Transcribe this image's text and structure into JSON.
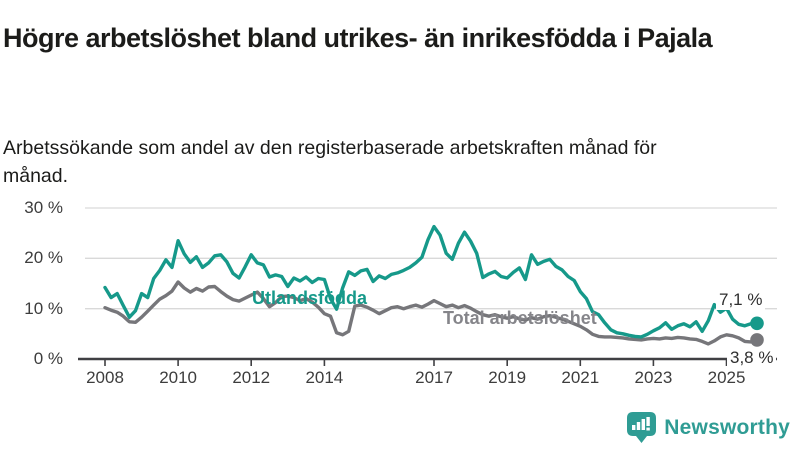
{
  "header": {
    "title": "Högre arbetslöshet bland utrikes- än inrikesfödda i Pajala",
    "subtitle": "Arbetssökande som andel av den registerbaserade arbetskraften månad för månad."
  },
  "chart_data": {
    "type": "line",
    "title": "Högre arbetslöshet bland utrikes- än inrikesfödda i Pajala",
    "subtitle": "Arbetssökande som andel av den registerbaserade arbetskraften månad för månad.",
    "unit": "%",
    "grid": true,
    "ylim": [
      0,
      30
    ],
    "y_tick_labels": [
      "0 %",
      "10 %",
      "20 %",
      "30 %"
    ],
    "y_tick_values": [
      0,
      10,
      20,
      30
    ],
    "x_tick_labels": [
      "2008",
      "2010",
      "2012",
      "2014",
      "2017",
      "2019",
      "2021",
      "2023",
      "2025"
    ],
    "x_start_year": 2008,
    "points_per_year": 6,
    "series": [
      {
        "name": "Utlandsfödda",
        "color": "#16998a",
        "end_label": "7,1 %",
        "end_value": 7.1,
        "values": [
          14.2,
          12.2,
          13.0,
          10.6,
          8.3,
          9.6,
          13.0,
          12.2,
          16.0,
          17.6,
          19.7,
          18.2,
          23.5,
          20.9,
          19.2,
          20.3,
          18.2,
          19.1,
          20.5,
          20.7,
          19.3,
          17.0,
          16.1,
          18.3,
          20.7,
          19.1,
          18.7,
          16.3,
          16.7,
          16.4,
          14.4,
          16.1,
          15.5,
          16.3,
          15.2,
          16.0,
          15.8,
          12.0,
          9.9,
          14.1,
          17.3,
          16.6,
          17.5,
          17.8,
          15.4,
          16.5,
          16.0,
          16.8,
          17.1,
          17.6,
          18.2,
          19.1,
          20.2,
          23.7,
          26.3,
          24.6,
          21.0,
          19.8,
          23.0,
          25.2,
          23.4,
          21.0,
          16.2,
          16.9,
          17.4,
          16.4,
          16.1,
          17.2,
          18.1,
          15.8,
          20.7,
          18.8,
          19.4,
          19.8,
          18.4,
          17.7,
          16.4,
          15.6,
          13.4,
          12.0,
          9.4,
          8.8,
          7.2,
          5.8,
          5.2,
          5.0,
          4.7,
          4.5,
          4.4,
          4.9,
          5.6,
          6.2,
          7.2,
          5.9,
          6.6,
          7.0,
          6.4,
          7.4,
          5.5,
          7.6,
          10.8,
          9.3,
          10.1,
          7.9,
          6.9,
          6.6,
          7.0,
          7.1
        ]
      },
      {
        "name": "Total arbetslöshet",
        "color": "#76767a",
        "end_label": "3,8 %",
        "end_value": 3.8,
        "values": [
          10.2,
          9.7,
          9.3,
          8.5,
          7.4,
          7.3,
          8.3,
          9.5,
          10.7,
          11.9,
          12.6,
          13.5,
          15.3,
          14.1,
          13.3,
          14.0,
          13.5,
          14.3,
          14.4,
          13.4,
          12.5,
          11.8,
          11.5,
          12.1,
          12.7,
          13.3,
          12.0,
          10.4,
          11.2,
          12.4,
          12.5,
          12.2,
          11.6,
          12.0,
          11.3,
          10.3,
          9.0,
          8.5,
          5.2,
          4.8,
          5.5,
          10.5,
          10.7,
          10.3,
          9.7,
          9.0,
          9.6,
          10.2,
          10.4,
          10.0,
          10.4,
          10.7,
          10.3,
          10.9,
          11.6,
          11.0,
          10.4,
          10.7,
          10.2,
          10.6,
          10.1,
          9.4,
          8.8,
          8.5,
          8.8,
          8.4,
          8.1,
          8.4,
          8.0,
          7.7,
          8.2,
          7.9,
          8.4,
          8.6,
          8.3,
          7.9,
          7.5,
          7.0,
          6.5,
          5.8,
          4.9,
          4.5,
          4.4,
          4.4,
          4.3,
          4.2,
          4.0,
          3.9,
          3.8,
          4.0,
          4.1,
          4.0,
          4.2,
          4.1,
          4.3,
          4.2,
          4.0,
          3.9,
          3.5,
          3.0,
          3.6,
          4.4,
          4.8,
          4.6,
          4.2,
          3.5,
          3.4,
          3.8
        ]
      }
    ],
    "legend_position": "inline-labels"
  },
  "colors": {
    "utlandsfodda": "#16998a",
    "total": "#76767a",
    "grid": "#d9d9d9",
    "axis": "#404043",
    "brand": "#2f9c94"
  },
  "footer": {
    "brand": "Newsworthy",
    "logo_icon": "bar-chart-speech-bubble"
  }
}
